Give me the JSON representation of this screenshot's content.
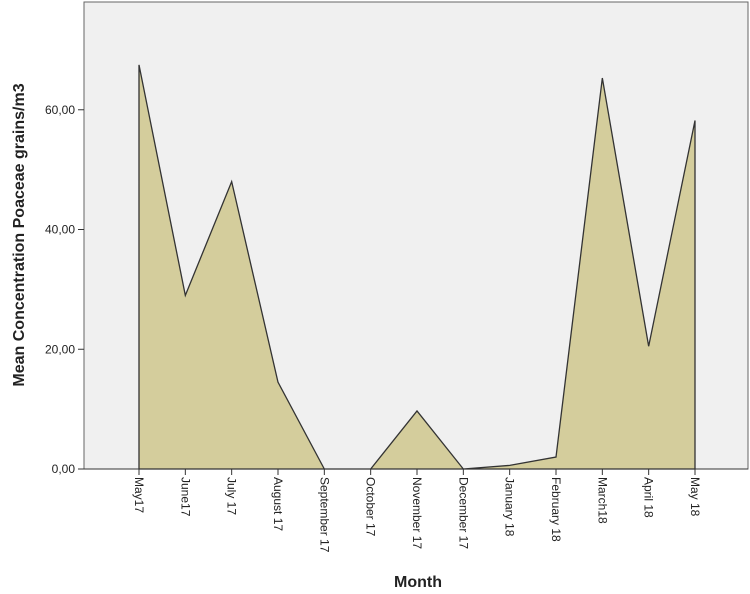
{
  "chart_data": {
    "type": "area",
    "title": "",
    "xlabel": "Month",
    "ylabel": "Mean Concentration Poaceae grains/m3",
    "categories": [
      "May17",
      "June17",
      "July 17",
      "August 17",
      "September 17",
      "October 17",
      "November 17",
      "December 17",
      "January 18",
      "February 18",
      "March18",
      "April 18",
      "May 18"
    ],
    "series": [
      {
        "values": [
          67.5,
          29.0,
          48.0,
          14.5,
          0.0,
          0.0,
          9.7,
          0.0,
          0.6,
          2.0,
          65.3,
          20.5,
          58.2
        ]
      }
    ],
    "ylim": [
      0,
      78
    ],
    "yticks": [
      0,
      20,
      40,
      60
    ],
    "ytick_labels": [
      "0,00",
      "20,00",
      "40,00",
      "60,00"
    ],
    "grid": false,
    "colors": {
      "fill": "#d4cd9c",
      "line": "#333333",
      "plot_bg": "#f0f0f0",
      "frame": "#666666"
    }
  }
}
